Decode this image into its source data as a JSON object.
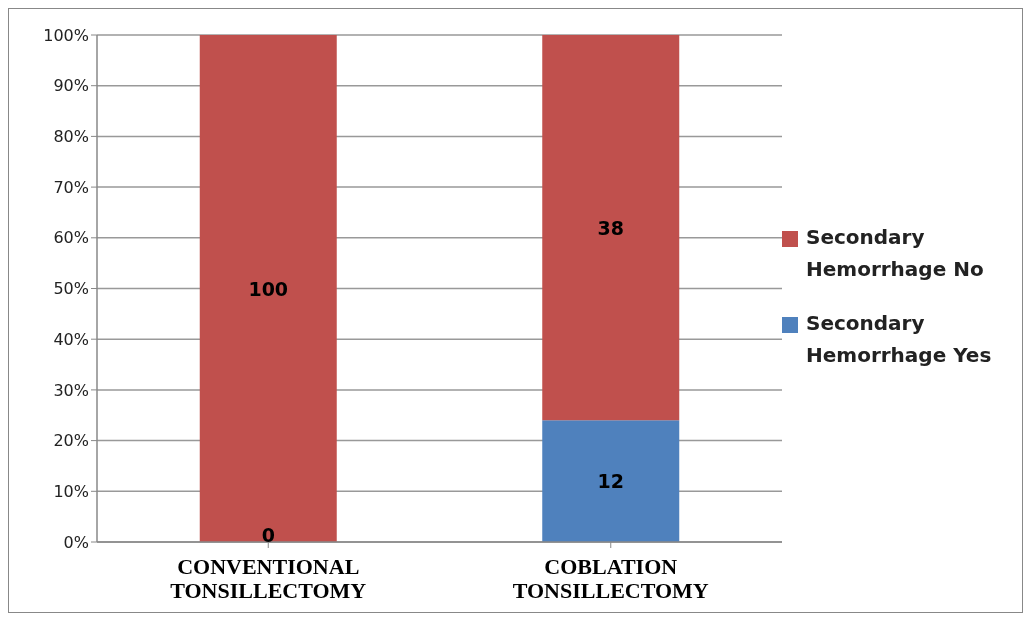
{
  "chart_data": {
    "type": "bar",
    "stacked": true,
    "categories": [
      "CONVENTIONAL TONSILLECTOMY",
      "COBLATION TONSILLECTOMY"
    ],
    "series": [
      {
        "name": "Secondary Hemorrhage Yes",
        "color": "#4f81bd",
        "values": [
          0,
          24
        ]
      },
      {
        "name": "Secondary Hemorrhage No",
        "color": "#c0504d",
        "values": [
          100,
          76
        ]
      }
    ],
    "annotations": [
      "0",
      "12",
      "100",
      "38"
    ],
    "ylim": [
      0,
      100
    ],
    "yticks": [
      {
        "value": 0,
        "label": "0%"
      },
      {
        "value": 10,
        "label": "10%"
      },
      {
        "value": 20,
        "label": "20%"
      },
      {
        "value": 30,
        "label": "30%"
      },
      {
        "value": 40,
        "label": "40%"
      },
      {
        "value": 50,
        "label": "50%"
      },
      {
        "value": 60,
        "label": "60%"
      },
      {
        "value": 70,
        "label": "70%"
      },
      {
        "value": 80,
        "label": "80%"
      },
      {
        "value": 90,
        "label": "90%"
      },
      {
        "value": 100,
        "label": "100%"
      }
    ],
    "grid": "y",
    "legend": "right"
  }
}
